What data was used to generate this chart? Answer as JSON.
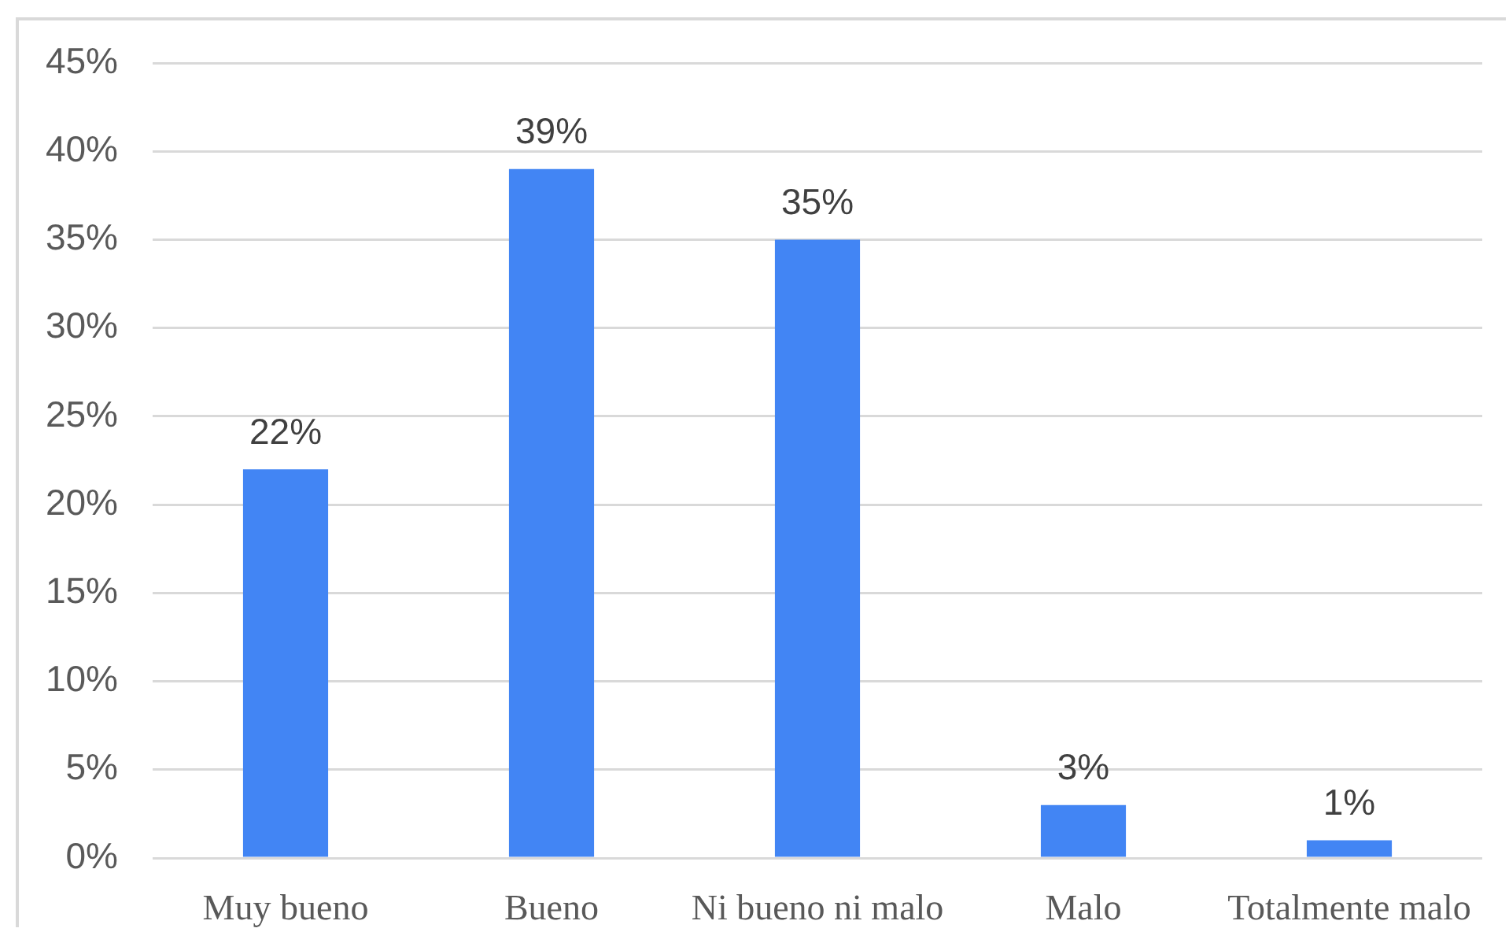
{
  "chart_data": {
    "type": "bar",
    "categories": [
      "Muy bueno",
      "Bueno",
      "Ni bueno ni malo",
      "Malo",
      "Totalmente malo"
    ],
    "values": [
      22,
      39,
      35,
      3,
      1
    ],
    "color": "#4285f4",
    "value_labels": [
      "22%",
      "39%",
      "35%",
      "3%",
      "1%"
    ],
    "ylim": [
      0,
      45
    ],
    "yticks": [
      {
        "value": 0,
        "label": "0%"
      },
      {
        "value": 5,
        "label": "5%"
      },
      {
        "value": 10,
        "label": "10%"
      },
      {
        "value": 15,
        "label": "15%"
      },
      {
        "value": 20,
        "label": "20%"
      },
      {
        "value": 25,
        "label": "25%"
      },
      {
        "value": 30,
        "label": "30%"
      },
      {
        "value": 35,
        "label": "35%"
      },
      {
        "value": 40,
        "label": "40%"
      },
      {
        "value": 45,
        "label": "45%"
      }
    ],
    "grid": "y"
  }
}
